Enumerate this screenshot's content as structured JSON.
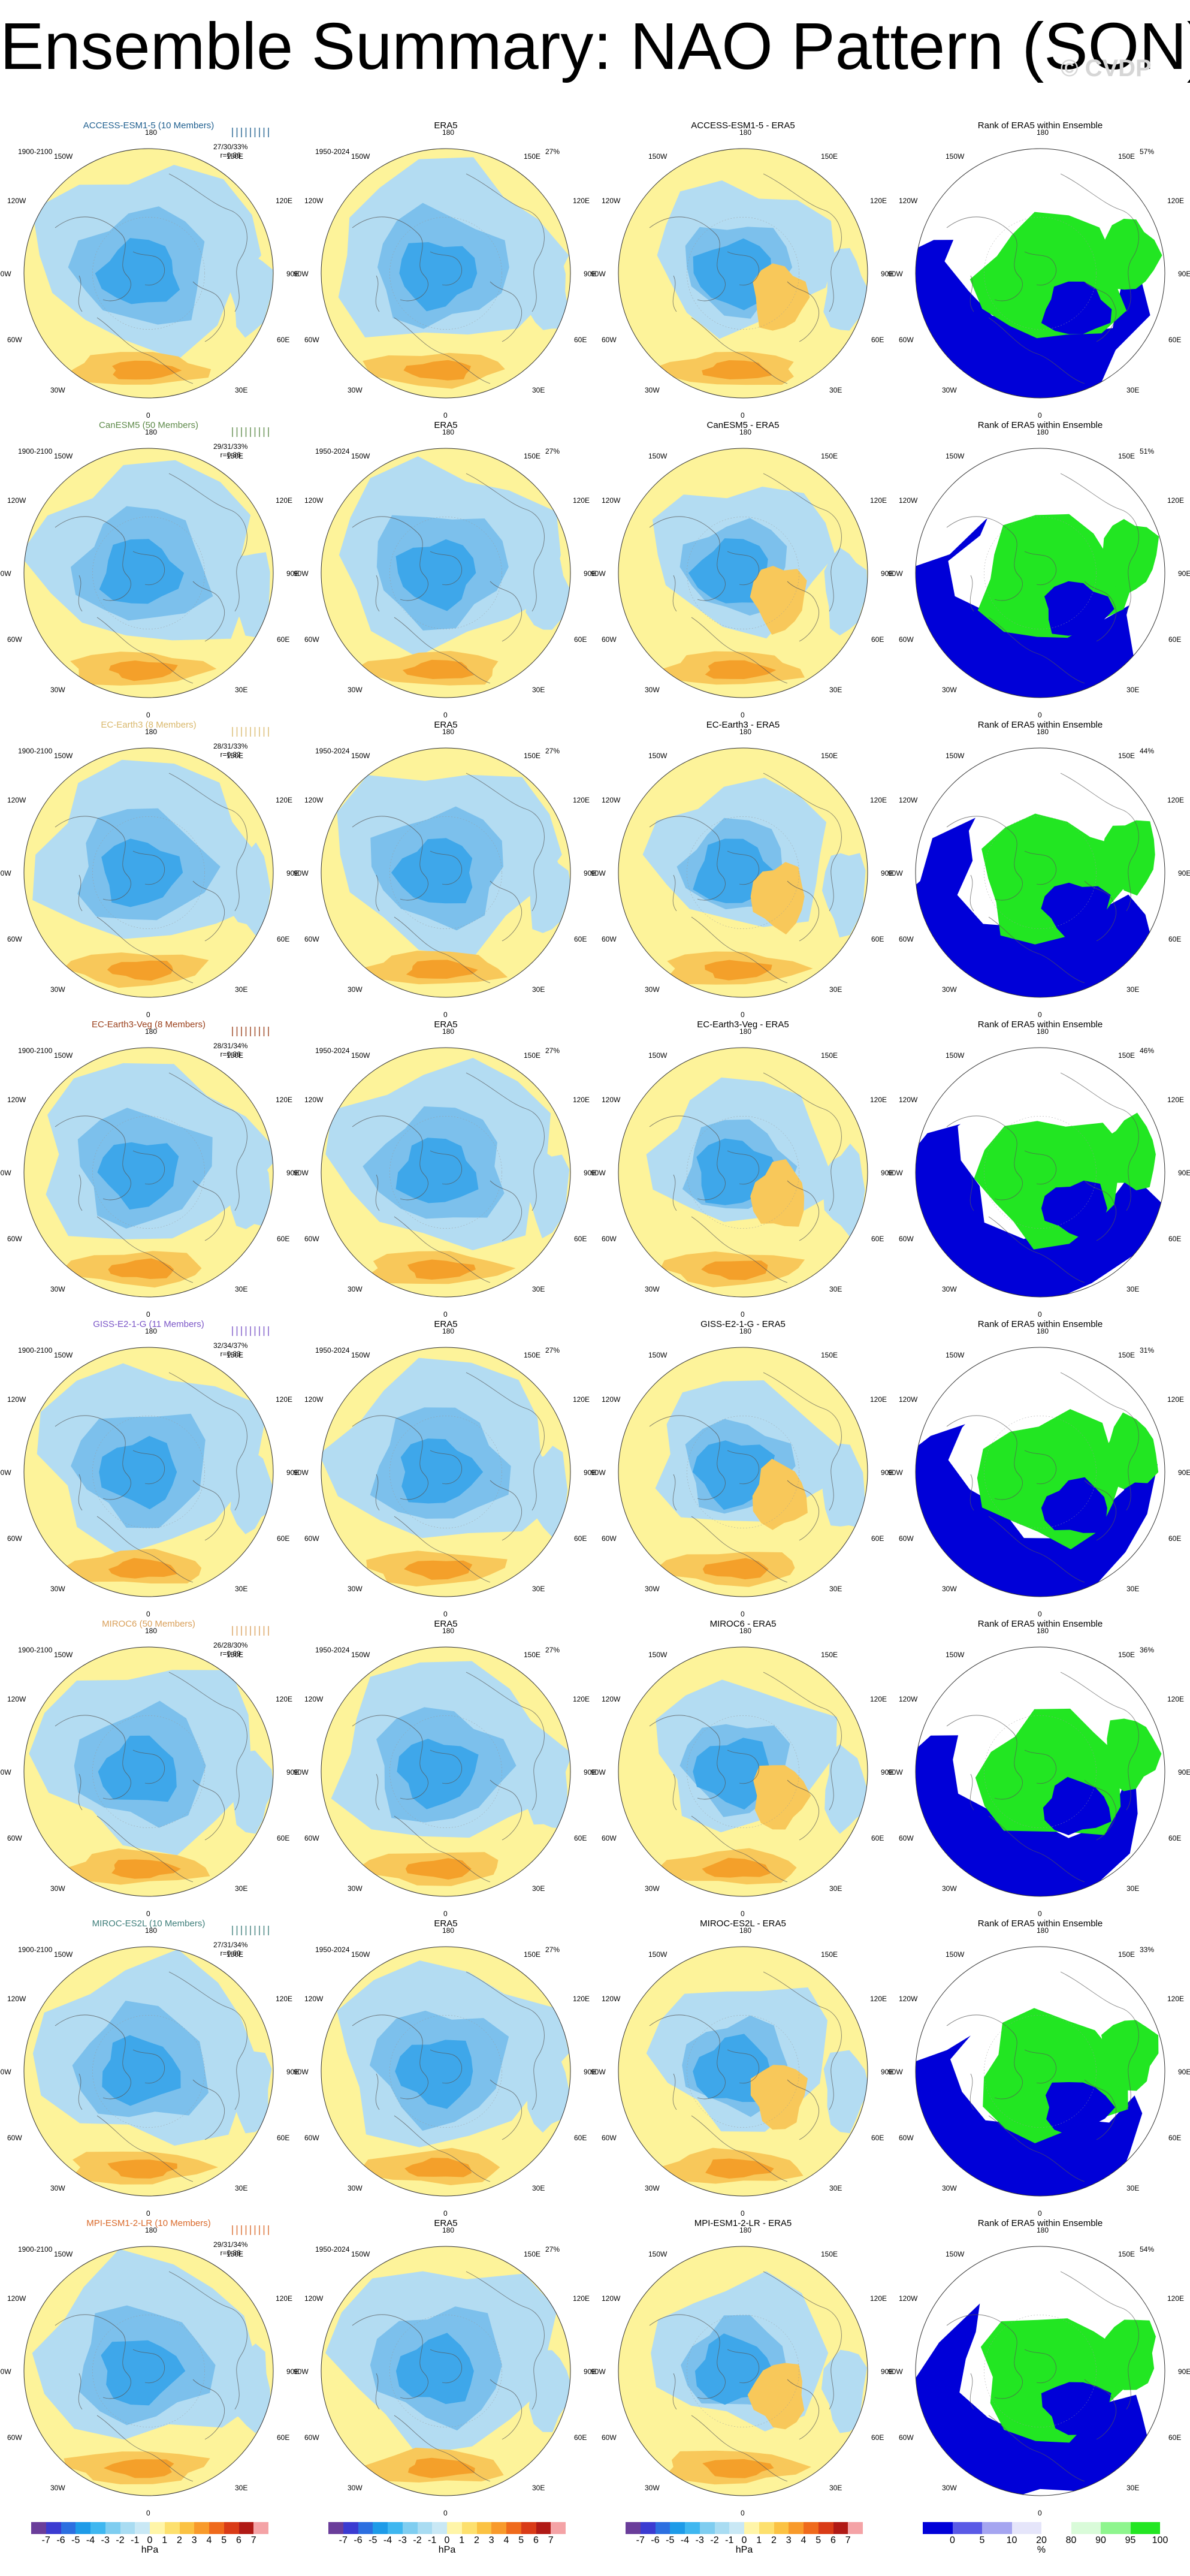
{
  "title": "Ensemble Summary: NAO Pattern (SON)",
  "watermark": "© CVDP",
  "compass": {
    "top": "180",
    "bottom": "0",
    "left": "90W",
    "right": "90E",
    "ul1": "150W",
    "ul2": "120W",
    "ur1": "150E",
    "ur2": "120E",
    "ll1": "60W",
    "ll2": "30W",
    "lr1": "60E",
    "lr2": "30E"
  },
  "rows": [
    {
      "model": "ACCESS-ESM1-5 (10 Members)",
      "model_color": "#1f5f8f",
      "model_period": "1900-2100",
      "stats": "27/30/33%",
      "r_value": "r=0.86",
      "era5_title": "ERA5",
      "era5_period": "1950-2024",
      "era5_pct": "27%",
      "diff_title": "ACCESS-ESM1-5 - ERA5",
      "rank_title": "Rank of ERA5 within Ensemble",
      "rank_pct": "57%"
    },
    {
      "model": "CanESM5 (50 Members)",
      "model_color": "#5e8a4a",
      "model_period": "1900-2100",
      "stats": "29/31/33%",
      "r_value": "r=0.86",
      "era5_title": "ERA5",
      "era5_period": "1950-2024",
      "era5_pct": "27%",
      "diff_title": "CanESM5 - ERA5",
      "rank_title": "Rank of ERA5 within Ensemble",
      "rank_pct": "51%"
    },
    {
      "model": "EC-Earth3 (8 Members)",
      "model_color": "#d9b86c",
      "model_period": "1900-2100",
      "stats": "28/31/33%",
      "r_value": "r=0.82",
      "era5_title": "ERA5",
      "era5_period": "1950-2024",
      "era5_pct": "27%",
      "diff_title": "EC-Earth3 - ERA5",
      "rank_title": "Rank of ERA5 within Ensemble",
      "rank_pct": "44%"
    },
    {
      "model": "EC-Earth3-Veg (8 Members)",
      "model_color": "#9a3f1a",
      "model_period": "1900-2100",
      "stats": "28/31/34%",
      "r_value": "r=0.86",
      "era5_title": "ERA5",
      "era5_period": "1950-2024",
      "era5_pct": "27%",
      "diff_title": "EC-Earth3-Veg - ERA5",
      "rank_title": "Rank of ERA5 within Ensemble",
      "rank_pct": "46%"
    },
    {
      "model": "GISS-E2-1-G (11 Members)",
      "model_color": "#7a55c7",
      "model_period": "1900-2100",
      "stats": "32/34/37%",
      "r_value": "r=0.83",
      "era5_title": "ERA5",
      "era5_period": "1950-2024",
      "era5_pct": "27%",
      "diff_title": "GISS-E2-1-G - ERA5",
      "rank_title": "Rank of ERA5 within Ensemble",
      "rank_pct": "31%"
    },
    {
      "model": "MIROC6 (50 Members)",
      "model_color": "#d9a05a",
      "model_period": "1900-2100",
      "stats": "26/28/30%",
      "r_value": "r=0.69",
      "era5_title": "ERA5",
      "era5_period": "1950-2024",
      "era5_pct": "27%",
      "diff_title": "MIROC6 - ERA5",
      "rank_title": "Rank of ERA5 within Ensemble",
      "rank_pct": "36%"
    },
    {
      "model": "MIROC-ES2L (10 Members)",
      "model_color": "#3e7e7a",
      "model_period": "1900-2100",
      "stats": "27/31/34%",
      "r_value": "r=0.60",
      "era5_title": "ERA5",
      "era5_period": "1950-2024",
      "era5_pct": "27%",
      "diff_title": "MIROC-ES2L - ERA5",
      "rank_title": "Rank of ERA5 within Ensemble",
      "rank_pct": "33%"
    },
    {
      "model": "MPI-ESM1-2-LR (10 Members)",
      "model_color": "#d9692a",
      "model_period": "1900-2100",
      "stats": "29/31/34%",
      "r_value": "r=0.88",
      "era5_title": "ERA5",
      "era5_period": "1950-2024",
      "era5_pct": "27%",
      "diff_title": "MPI-ESM1-2-LR - ERA5",
      "rank_title": "Rank of ERA5 within Ensemble",
      "rank_pct": "54%"
    }
  ],
  "colorbars": {
    "hpa": {
      "ticks": [
        "-7",
        "-6",
        "-5",
        "-4",
        "-3",
        "-2",
        "-1",
        "0",
        "1",
        "2",
        "3",
        "4",
        "5",
        "6",
        "7"
      ],
      "unit": "hPa",
      "colors": [
        "#6a3d9a",
        "#3b3bd1",
        "#2c6fe0",
        "#1e9be8",
        "#3fb7f0",
        "#7fcdf0",
        "#a9dcf2",
        "#c9e8f5",
        "#fff5a8",
        "#fde06e",
        "#fbc243",
        "#f89a2b",
        "#ef6a1c",
        "#d93b17",
        "#b01a16",
        "#f4a3a6"
      ]
    },
    "rank": {
      "ticks": [
        "0",
        "5",
        "10",
        "20",
        "80",
        "90",
        "95",
        "100"
      ],
      "unit": "%",
      "colors": [
        "#0000d8",
        "#5a5ae6",
        "#a5a5f0",
        "#e5e5fa",
        "#ffffff",
        "#d9fbd9",
        "#8ef58e",
        "#22e622"
      ]
    }
  },
  "map_colors": {
    "positive_light": "#fdf39a",
    "negative_light": "#b3dcf2",
    "negative_mid": "#7cc0ec",
    "negative_deep": "#3ea7ea",
    "positive_mid": "#f8c85a",
    "positive_deep": "#f4a02a",
    "rank_low": "#0000d8",
    "rank_high": "#22e622",
    "rank_mid": "#ffffff"
  }
}
